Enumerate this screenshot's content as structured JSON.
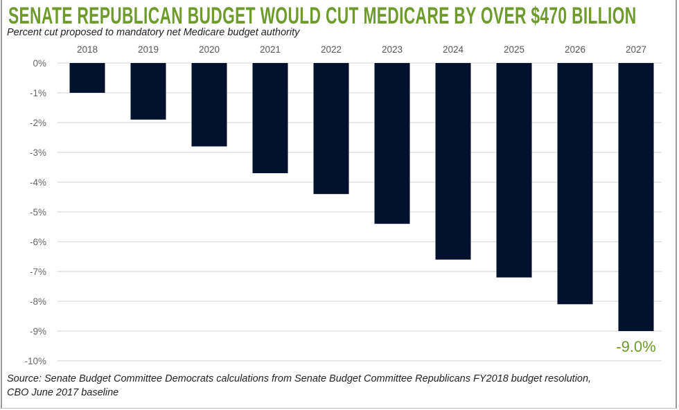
{
  "title": "SENATE REPUBLICAN BUDGET WOULD CUT MEDICARE BY OVER $470 BILLION",
  "subtitle": "Percent cut proposed to mandatory net Medicare budget authority",
  "source_line1": "Source: Senate Budget Committee Democrats calculations from Senate Budget Committee Republicans FY2018 budget resolution,",
  "source_line2": "CBO June 2017 baseline",
  "colors": {
    "title": "#6e9b2c",
    "bar": "#02112e",
    "annotation": "#6e9b2c"
  },
  "chart_data": {
    "type": "bar",
    "title": "SENATE REPUBLICAN BUDGET WOULD CUT MEDICARE BY OVER $470 BILLION",
    "subtitle": "Percent cut proposed to mandatory net Medicare budget authority",
    "categories": [
      "2018",
      "2019",
      "2020",
      "2021",
      "2022",
      "2023",
      "2024",
      "2025",
      "2026",
      "2027"
    ],
    "values": [
      -1.0,
      -1.9,
      -2.8,
      -3.7,
      -4.4,
      -5.4,
      -6.6,
      -7.2,
      -8.1,
      -9.0
    ],
    "ylim": [
      -10,
      0
    ],
    "yticks": [
      "0%",
      "-1%",
      "-2%",
      "-3%",
      "-4%",
      "-5%",
      "-6%",
      "-7%",
      "-8%",
      "-9%",
      "-10%"
    ],
    "x_axis_position": "top",
    "grid": true,
    "annotation": {
      "category": "2027",
      "text": "-9.0%"
    }
  }
}
